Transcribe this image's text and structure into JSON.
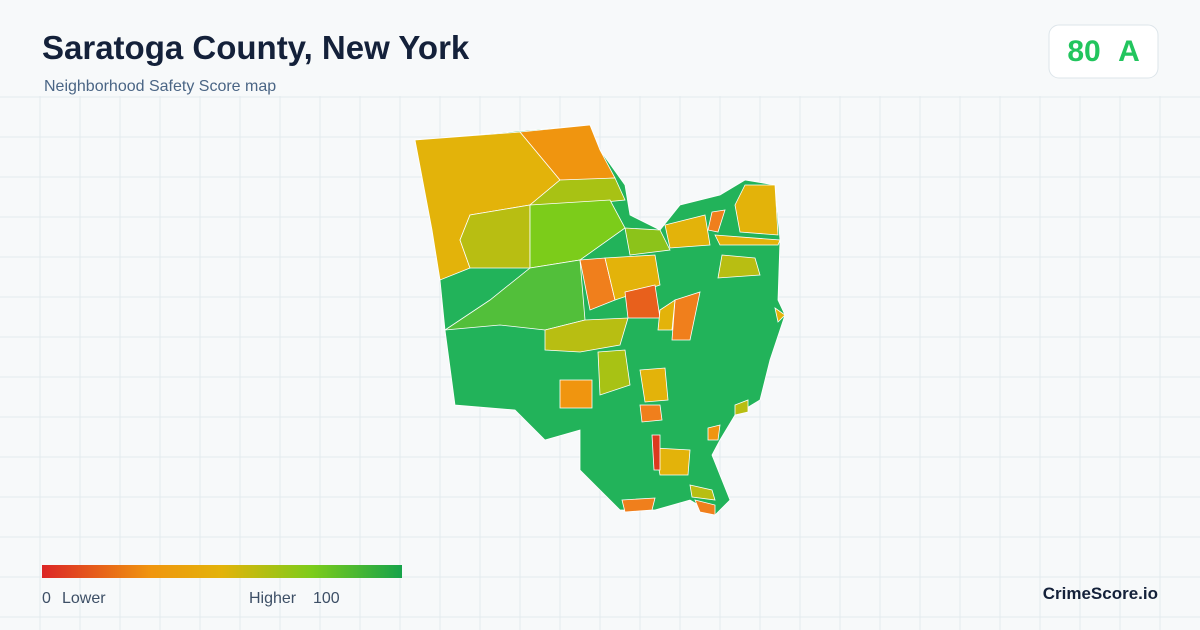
{
  "header": {
    "title": "Saratoga County, New York",
    "subtitle": "Neighborhood Safety Score map"
  },
  "score": {
    "value": 80,
    "grade": "A"
  },
  "legend": {
    "min": 0,
    "min_label": "Lower",
    "max_label": "Higher",
    "max": 100
  },
  "brand": "CrimeScore.io"
}
